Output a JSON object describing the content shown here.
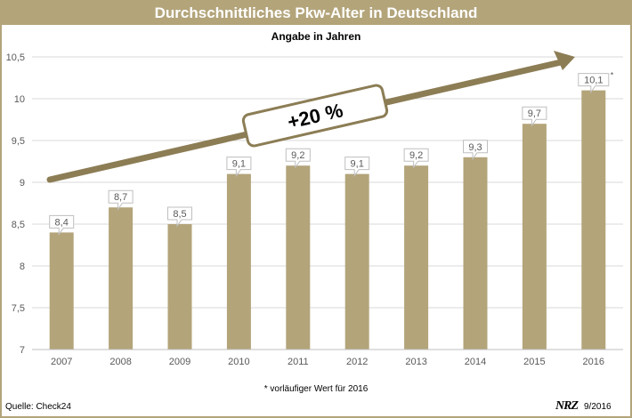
{
  "header": {
    "title": "Durchschnittliches Pkw-Alter in Deutschland"
  },
  "colors": {
    "accent": "#b3a47a",
    "bar": "#b3a47a",
    "bar_dark": "#8c7d55",
    "grid": "#d9d9d9",
    "text": "#595959"
  },
  "chart_data": {
    "type": "bar",
    "title": "Durchschnittliches Pkw-Alter in Deutschland",
    "subtitle": "Angabe in Jahren",
    "categories": [
      "2007",
      "2008",
      "2009",
      "2010",
      "2011",
      "2012",
      "2013",
      "2014",
      "2015",
      "2016"
    ],
    "values": [
      8.4,
      8.7,
      8.5,
      9.1,
      9.2,
      9.1,
      9.2,
      9.3,
      9.7,
      10.1
    ],
    "labels": [
      "8,4",
      "8,7",
      "8,5",
      "9,1",
      "9,2",
      "9,1",
      "9,2",
      "9,3",
      "9,7",
      "10,1"
    ],
    "label_marks": [
      "",
      "",
      "",
      "",
      "",
      "",
      "",
      "",
      "",
      "*"
    ],
    "y_ticks": [
      {
        "value": 7,
        "label": "7"
      },
      {
        "value": 7.5,
        "label": "7,5"
      },
      {
        "value": 8,
        "label": "8"
      },
      {
        "value": 8.5,
        "label": "8,5"
      },
      {
        "value": 9,
        "label": "9"
      },
      {
        "value": 9.5,
        "label": "9,5"
      },
      {
        "value": 10,
        "label": "10"
      },
      {
        "value": 10.5,
        "label": "10,5"
      }
    ],
    "ylim": [
      7,
      10.5
    ],
    "grid": true,
    "legend": "none",
    "annotation": "+20 %"
  },
  "footer": {
    "footnote": "* vorläufiger Wert für 2016",
    "source": "Quelle: Check24",
    "brand": "NRZ",
    "date": "9/2016"
  }
}
